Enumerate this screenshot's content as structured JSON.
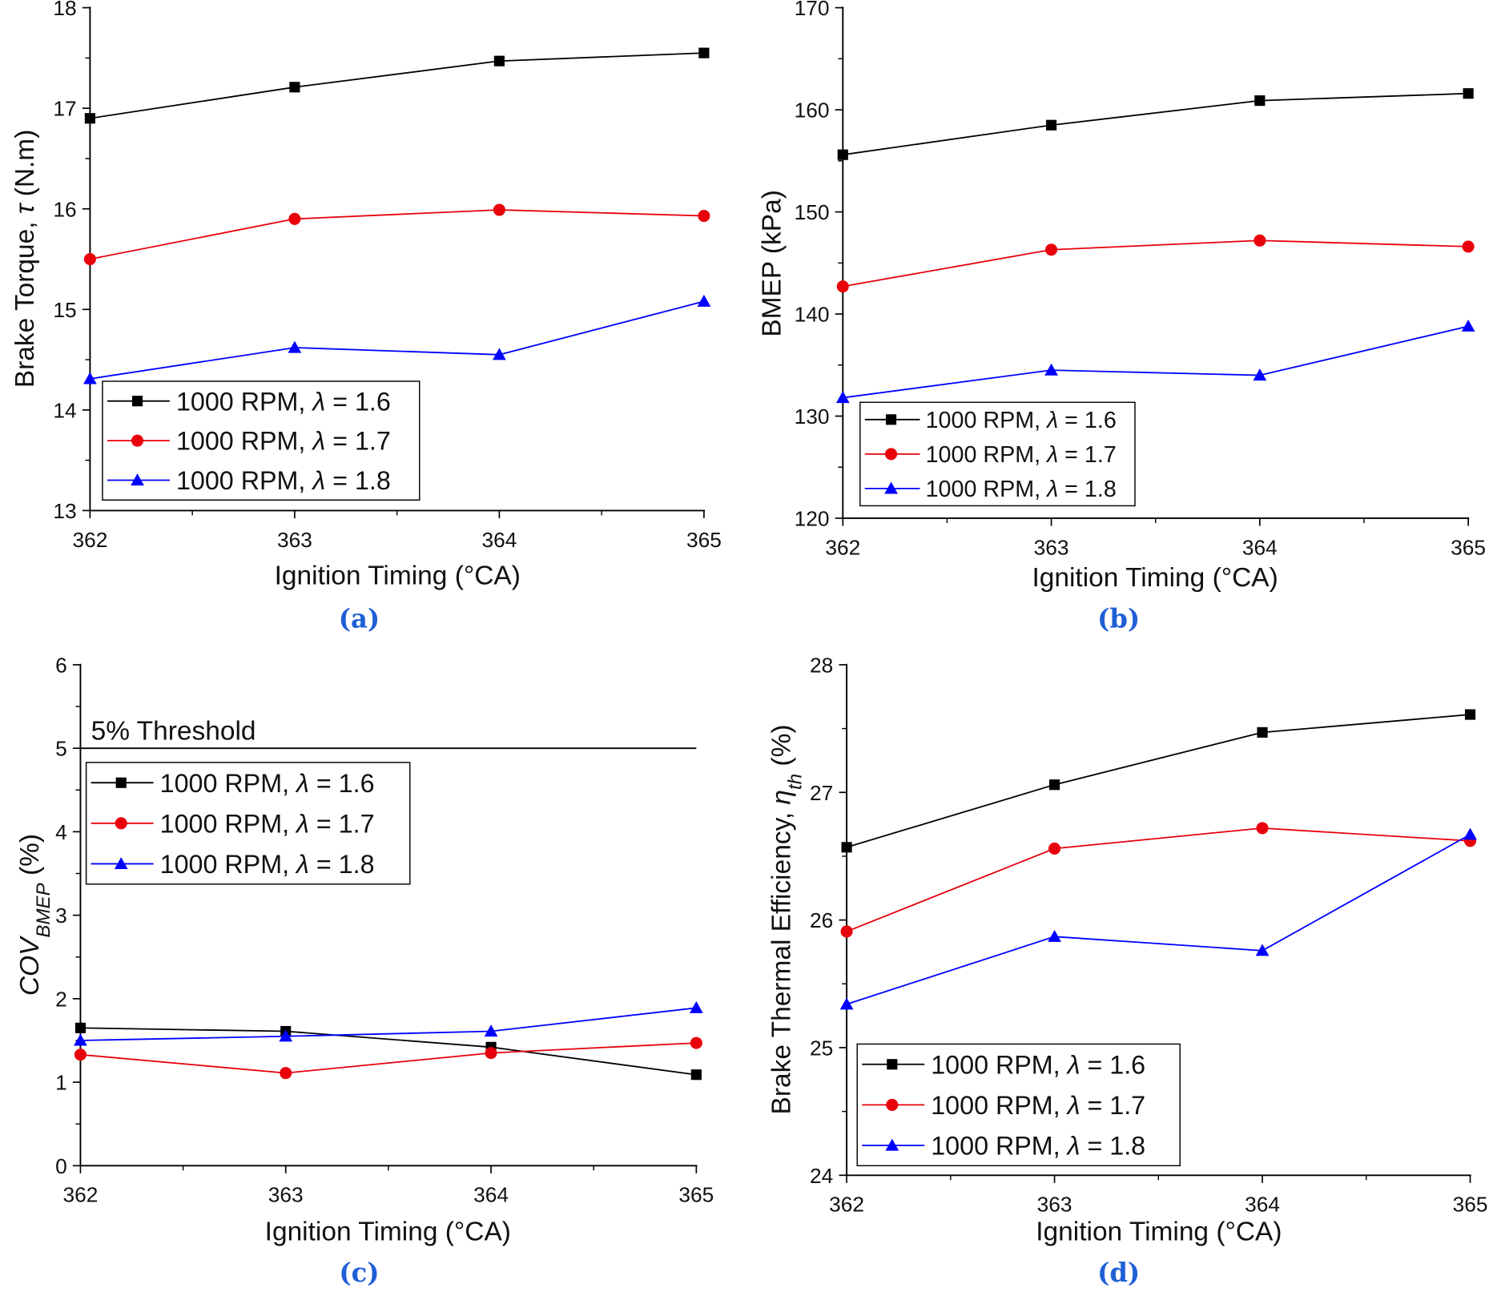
{
  "colors": {
    "black": "#000000",
    "red": "#e8000b",
    "blue": "#0000ff",
    "panel_label": "#1f5fd6"
  },
  "chart_data": [
    {
      "type": "line",
      "panel_label": "(a)",
      "x": [
        362,
        363,
        364,
        365
      ],
      "xlim": [
        362,
        365
      ],
      "xticks": [
        "362",
        "363",
        "364",
        "365"
      ],
      "xlabel": "Ignition Timing (°CA)",
      "ylabel_parts": [
        {
          "t": "Brake Torque, "
        },
        {
          "t": "τ",
          "i": true
        },
        {
          "t": " (N.m)"
        }
      ],
      "ylim": [
        13,
        18
      ],
      "yticks": [
        "13",
        "14",
        "15",
        "16",
        "17",
        "18"
      ],
      "legend": "bottom-left",
      "series": [
        {
          "name": "1000 RPM, λ = 1.6",
          "color": "#000000",
          "marker": "square",
          "values": [
            16.9,
            17.21,
            17.47,
            17.55
          ]
        },
        {
          "name": "1000 RPM, λ = 1.7",
          "color": "#e8000b",
          "marker": "circle",
          "values": [
            15.5,
            15.9,
            15.99,
            15.93
          ]
        },
        {
          "name": "1000 RPM, λ = 1.8",
          "color": "#0000ff",
          "marker": "triangle",
          "values": [
            14.31,
            14.62,
            14.55,
            15.08
          ]
        }
      ]
    },
    {
      "type": "line",
      "panel_label": "(b)",
      "x": [
        362,
        363,
        364,
        365
      ],
      "xlim": [
        362,
        365
      ],
      "xticks": [
        "362",
        "363",
        "364",
        "365"
      ],
      "xlabel": "Ignition Timing (°CA)",
      "ylabel_parts": [
        {
          "t": "BMEP (kPa)"
        }
      ],
      "ylim": [
        120,
        170
      ],
      "yticks": [
        "120",
        "130",
        "140",
        "150",
        "160",
        "170"
      ],
      "legend": "bottom-left",
      "series": [
        {
          "name": "1000 RPM, λ = 1.6",
          "color": "#000000",
          "marker": "square",
          "values": [
            155.6,
            158.5,
            160.9,
            161.6
          ]
        },
        {
          "name": "1000 RPM, λ = 1.7",
          "color": "#e8000b",
          "marker": "circle",
          "values": [
            142.7,
            146.3,
            147.2,
            146.6
          ]
        },
        {
          "name": "1000 RPM, λ = 1.8",
          "color": "#0000ff",
          "marker": "triangle",
          "values": [
            131.8,
            134.5,
            134.0,
            138.8
          ]
        }
      ]
    },
    {
      "type": "line",
      "panel_label": "(c)",
      "x": [
        362,
        363,
        364,
        365
      ],
      "xlim": [
        362,
        365
      ],
      "xticks": [
        "362",
        "363",
        "364",
        "365"
      ],
      "xlabel": "Ignition Timing (°CA)",
      "ylabel_parts": [
        {
          "t": "COV",
          "i": true
        },
        {
          "t": "BMEP",
          "i": true,
          "sub": true
        },
        {
          "t": " (%)"
        }
      ],
      "ylim": [
        0,
        6
      ],
      "yticks": [
        "0",
        "1",
        "2",
        "3",
        "4",
        "5",
        "6"
      ],
      "legend": "top-left",
      "threshold": {
        "value": 5,
        "label": "5% Threshold"
      },
      "series": [
        {
          "name": "1000 RPM, λ = 1.6",
          "color": "#000000",
          "marker": "square",
          "values": [
            1.65,
            1.61,
            1.42,
            1.09
          ]
        },
        {
          "name": "1000 RPM, λ = 1.7",
          "color": "#e8000b",
          "marker": "circle",
          "values": [
            1.33,
            1.11,
            1.35,
            1.47
          ]
        },
        {
          "name": "1000 RPM, λ = 1.8",
          "color": "#0000ff",
          "marker": "triangle",
          "values": [
            1.5,
            1.55,
            1.61,
            1.89
          ]
        }
      ]
    },
    {
      "type": "line",
      "panel_label": "(d)",
      "x": [
        362,
        363,
        364,
        365
      ],
      "xlim": [
        362,
        365
      ],
      "xticks": [
        "362",
        "363",
        "364",
        "365"
      ],
      "xlabel": "Ignition Timing (°CA)",
      "ylabel_parts": [
        {
          "t": "Brake Thermal Efficiency, "
        },
        {
          "t": "η",
          "i": true
        },
        {
          "t": "th",
          "i": true,
          "sub": true
        },
        {
          "t": " (%)"
        }
      ],
      "ylim": [
        24,
        28
      ],
      "yticks": [
        "24",
        "25",
        "26",
        "27",
        "28"
      ],
      "legend": "bottom-left",
      "series": [
        {
          "name": "1000 RPM, λ = 1.6",
          "color": "#000000",
          "marker": "square",
          "values": [
            26.57,
            27.06,
            27.47,
            27.61
          ]
        },
        {
          "name": "1000 RPM, λ = 1.7",
          "color": "#e8000b",
          "marker": "circle",
          "values": [
            25.91,
            26.56,
            26.72,
            26.62
          ]
        },
        {
          "name": "1000 RPM, λ = 1.8",
          "color": "#0000ff",
          "marker": "triangle",
          "values": [
            25.34,
            25.87,
            25.76,
            26.67
          ]
        }
      ]
    }
  ]
}
